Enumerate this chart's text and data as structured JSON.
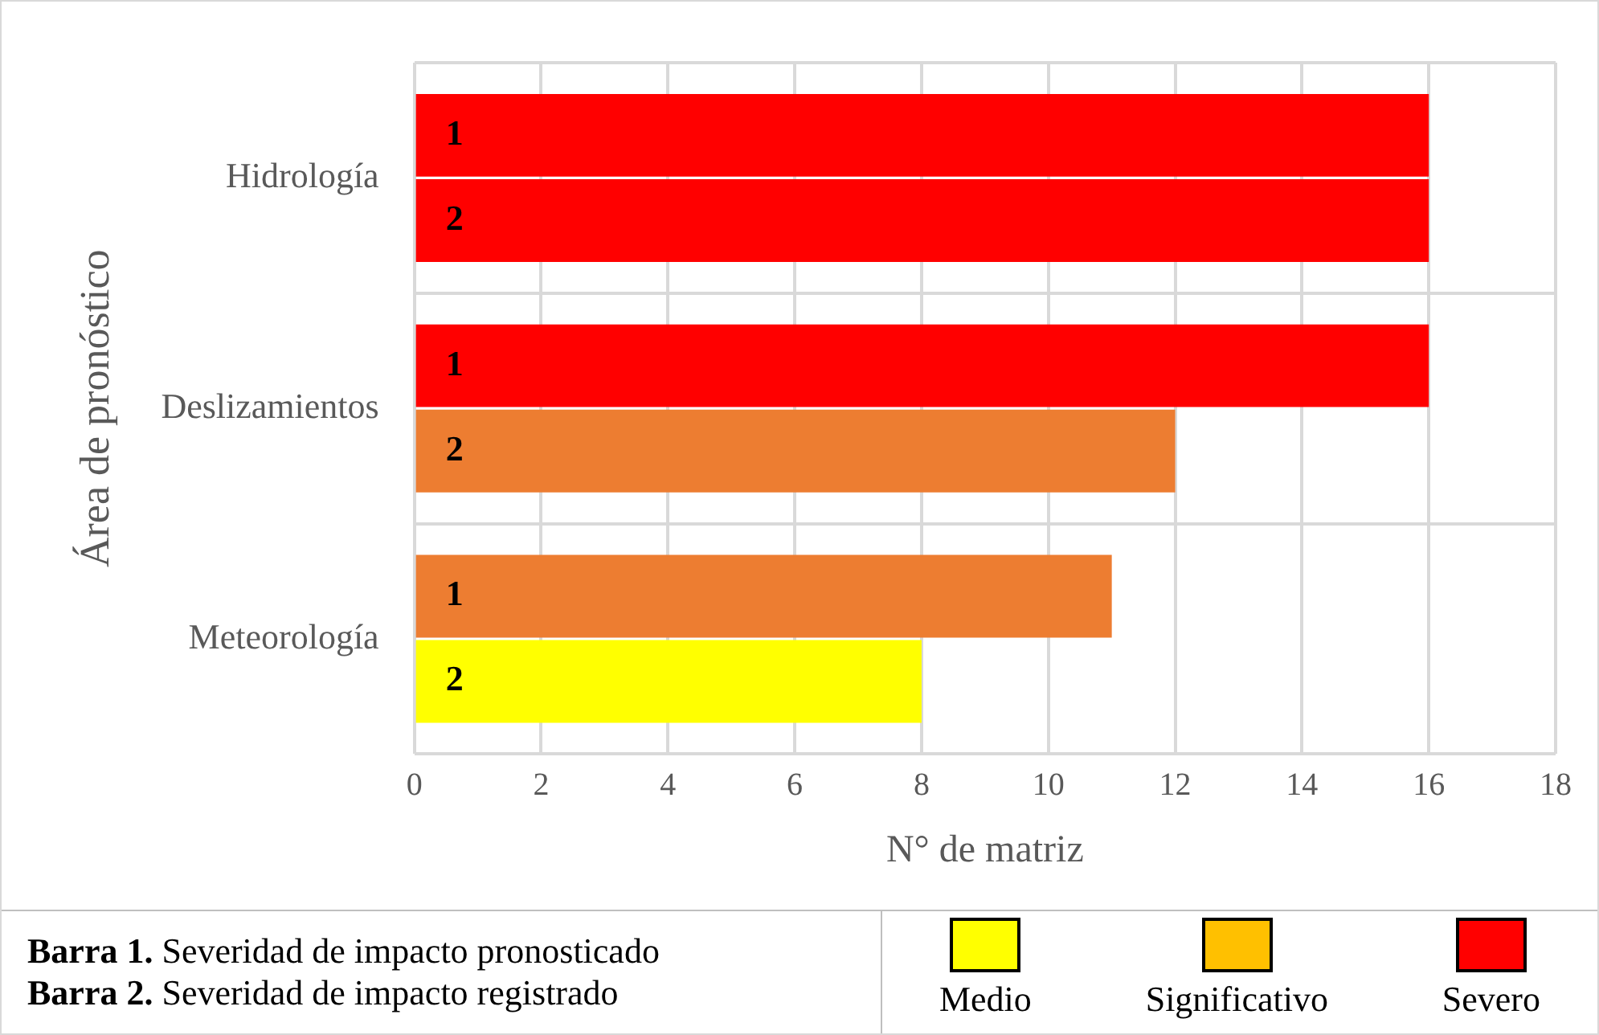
{
  "chart_data": {
    "type": "bar",
    "orientation": "horizontal",
    "xlabel": "N° de matriz",
    "ylabel": "Área de pronóstico",
    "categories": [
      "Hidrología",
      "Deslizamientos",
      "Meteorología"
    ],
    "series": [
      {
        "name": "1",
        "colors": [
          "#ff0000",
          "#ff0000",
          "#ed7d31"
        ],
        "values": [
          16,
          16,
          11
        ]
      },
      {
        "name": "2",
        "colors": [
          "#ff0000",
          "#ed7d31",
          "#ffff00"
        ],
        "values": [
          16,
          12,
          8
        ]
      }
    ],
    "xlim": [
      0,
      18
    ],
    "xticks": [
      0,
      2,
      4,
      6,
      8,
      10,
      12,
      14,
      16,
      18
    ],
    "grid": true,
    "legend": false,
    "annotations": [
      "Barra 1. Severidad de impacto pronosticado",
      "Barra 2. Severidad de impacto registrado",
      "Medio",
      "Significativo",
      "Severo"
    ]
  }
}
